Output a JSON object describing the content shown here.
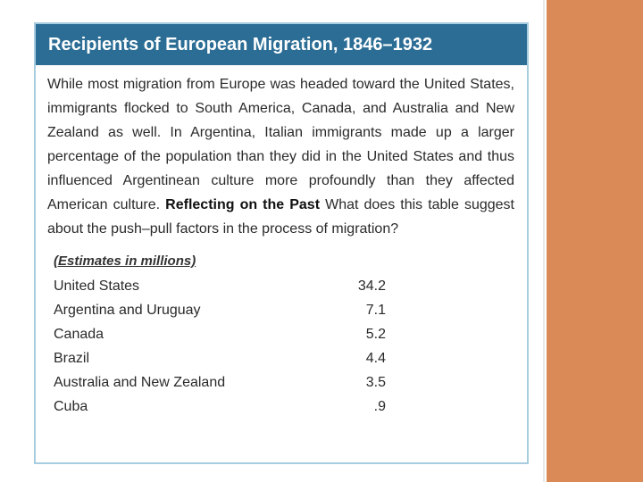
{
  "header": {
    "title": "Recipients of European Migration, 1846–1932"
  },
  "paragraph": {
    "text": "While most migration from Europe was headed toward the United States, immigrants flocked to South America, Canada, and Australia and New Zealand as well. In Argentina, Italian immigrants made up a larger percentage of the population than they did in the United States and thus influenced Argentinean culture more profoundly than they affected American culture.",
    "bold": "Reflecting on the Past",
    "question": "What does this table suggest about the push–pull factors in the process of migration?"
  },
  "table": {
    "caption": "(Estimates in millions)",
    "rows": [
      [
        "United States",
        "34.2"
      ],
      [
        "Argentina and Uruguay",
        "7.1"
      ],
      [
        "Canada",
        "5.2"
      ],
      [
        "Brazil",
        "4.4"
      ],
      [
        "Australia and New Zealand",
        "3.5"
      ],
      [
        "Cuba",
        ".9"
      ]
    ]
  }
}
